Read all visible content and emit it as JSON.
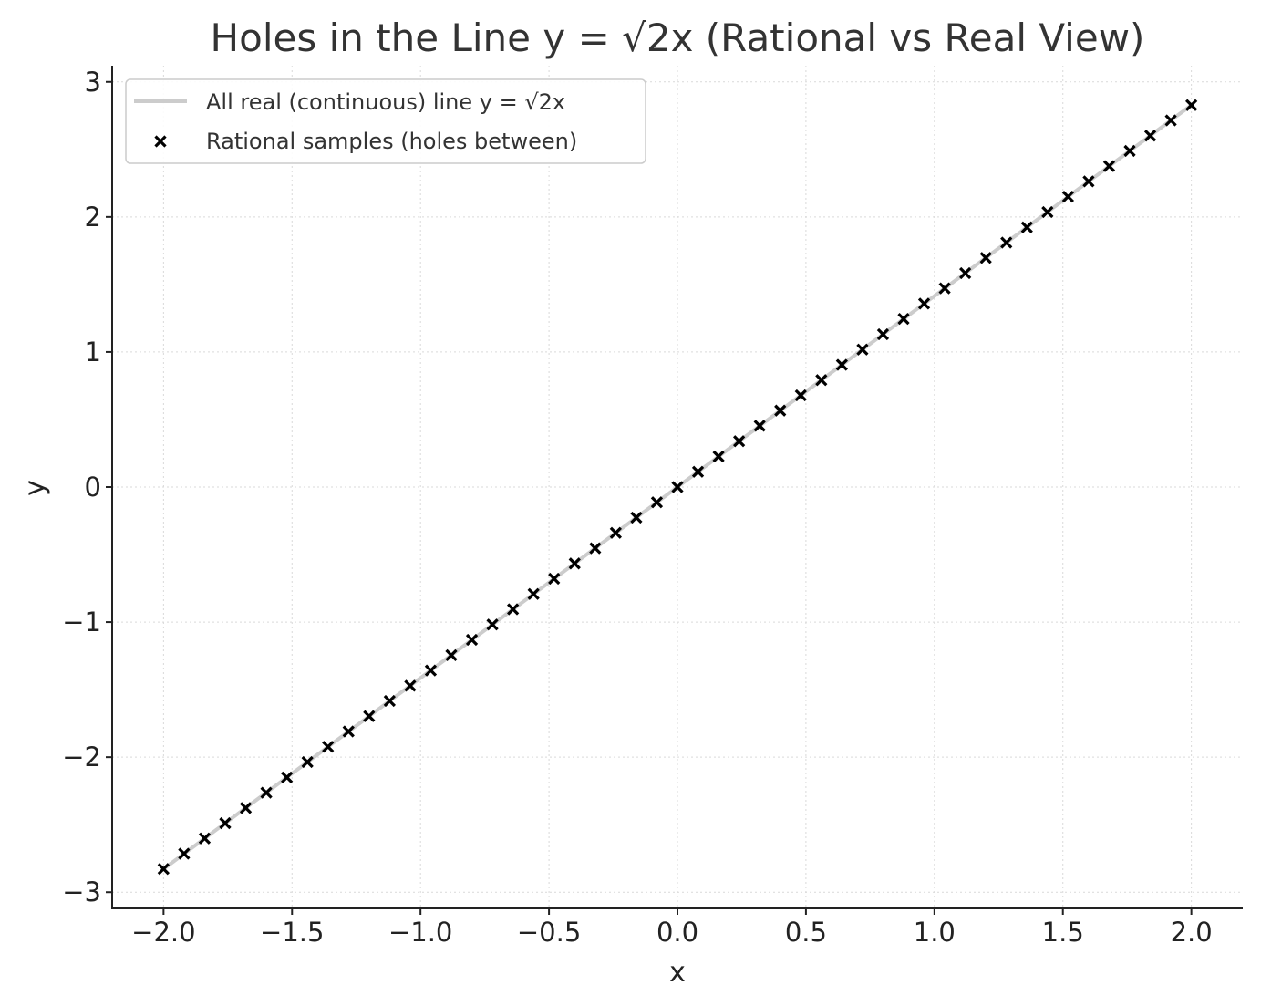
{
  "chart_data": {
    "type": "scatter",
    "title": "Holes in the Line y = √2x (Rational vs Real View)",
    "xlabel": "x",
    "ylabel": "y",
    "xlim": [
      -2.2,
      2.2
    ],
    "ylim": [
      -3.12,
      3.12
    ],
    "xticks": [
      -2.0,
      -1.5,
      -1.0,
      -0.5,
      0.0,
      0.5,
      1.0,
      1.5,
      2.0
    ],
    "xtick_labels": [
      "−2.0",
      "−1.5",
      "−1.0",
      "−0.5",
      "0.0",
      "0.5",
      "1.0",
      "1.5",
      "2.0"
    ],
    "yticks": [
      -3,
      -2,
      -1,
      0,
      1,
      2,
      3
    ],
    "ytick_labels": [
      "−3",
      "−2",
      "−1",
      "0",
      "1",
      "2",
      "3"
    ],
    "grid": true,
    "legend_position": "top-left",
    "series": [
      {
        "name": "All real (continuous) line y = √2x",
        "kind": "line",
        "color": "#cccccc",
        "x": [
          -2.0,
          2.0
        ],
        "y": [
          -2.828,
          2.828
        ]
      },
      {
        "name": "Rational samples (holes between)",
        "kind": "scatter",
        "marker": "x",
        "color": "#000000",
        "x": [
          -2.0,
          -1.92,
          -1.84,
          -1.76,
          -1.68,
          -1.6,
          -1.52,
          -1.44,
          -1.36,
          -1.28,
          -1.2,
          -1.12,
          -1.04,
          -0.96,
          -0.88,
          -0.8,
          -0.72,
          -0.64,
          -0.56,
          -0.48,
          -0.4,
          -0.32,
          -0.24,
          -0.16,
          -0.08,
          0.0,
          0.08,
          0.16,
          0.24,
          0.32,
          0.4,
          0.48,
          0.56,
          0.64,
          0.72,
          0.8,
          0.88,
          0.96,
          1.04,
          1.12,
          1.2,
          1.28,
          1.36,
          1.44,
          1.52,
          1.6,
          1.68,
          1.76,
          1.84,
          1.92,
          2.0
        ],
        "y": [
          -2.828,
          -2.715,
          -2.602,
          -2.489,
          -2.376,
          -2.263,
          -2.15,
          -2.036,
          -1.923,
          -1.81,
          -1.697,
          -1.584,
          -1.471,
          -1.358,
          -1.245,
          -1.131,
          -1.018,
          -0.905,
          -0.792,
          -0.679,
          -0.566,
          -0.453,
          -0.339,
          -0.226,
          -0.113,
          0.0,
          0.113,
          0.226,
          0.339,
          0.453,
          0.566,
          0.679,
          0.792,
          0.905,
          1.018,
          1.131,
          1.245,
          1.358,
          1.471,
          1.584,
          1.697,
          1.81,
          1.923,
          2.036,
          2.15,
          2.263,
          2.376,
          2.489,
          2.602,
          2.715,
          2.828
        ]
      }
    ]
  }
}
